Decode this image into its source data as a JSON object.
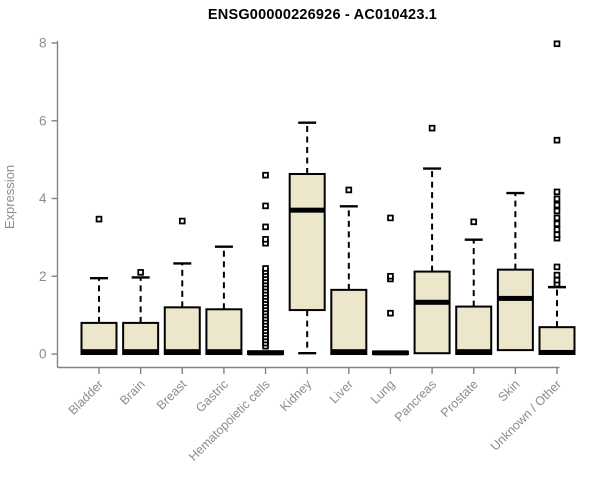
{
  "chart": {
    "title": "ENSG00000226926 - AC010423.1",
    "ylabel": "Expression"
  },
  "chart_data": {
    "type": "boxplot",
    "title": "ENSG00000226926 - AC010423.1",
    "xlabel": "",
    "ylabel": "Expression",
    "ylim": [
      0,
      8
    ],
    "yticks": [
      0,
      2,
      4,
      6,
      8
    ],
    "grid": false,
    "legend": "none",
    "box_fill_color": "#ECE7CB",
    "box_stroke_color": "#000000",
    "axis_color": "#848484",
    "label_color": "#8c8c8c",
    "categories": [
      "Bladder",
      "Brain",
      "Breast",
      "Gastric",
      "Hematopoietic cells",
      "Kidney",
      "Liver",
      "Lung",
      "Pancreas",
      "Prostate",
      "Skin",
      "Unknown / Other"
    ],
    "series": [
      {
        "name": "Bladder",
        "q1": 0,
        "median": 0.06,
        "q3": 0.8,
        "whisker_low": null,
        "whisker_high": 1.95,
        "outliers": [
          3.47
        ]
      },
      {
        "name": "Brain",
        "q1": 0,
        "median": 0.06,
        "q3": 0.8,
        "whisker_low": null,
        "whisker_high": 1.97,
        "outliers": [
          2.1
        ]
      },
      {
        "name": "Breast",
        "q1": 0,
        "median": 0.06,
        "q3": 1.2,
        "whisker_low": null,
        "whisker_high": 2.33,
        "outliers": [
          3.42
        ]
      },
      {
        "name": "Gastric",
        "q1": 0,
        "median": 0.06,
        "q3": 1.15,
        "whisker_low": null,
        "whisker_high": 2.76,
        "outliers": []
      },
      {
        "name": "Hematopoietic cells",
        "q1": 0,
        "median": 0.03,
        "q3": 0.07,
        "whisker_low": null,
        "whisker_high": null,
        "outliers": [
          0.2,
          0.28,
          0.36,
          0.44,
          0.52,
          0.6,
          0.68,
          0.76,
          0.84,
          0.92,
          1.0,
          1.08,
          1.16,
          1.24,
          1.32,
          1.4,
          1.48,
          1.56,
          1.64,
          1.72,
          1.8,
          1.88,
          1.96,
          2.04,
          2.12,
          2.2,
          2.85,
          2.95,
          3.27,
          3.81,
          4.6
        ]
      },
      {
        "name": "Kidney",
        "q1": 1.13,
        "median": 3.7,
        "q3": 4.63,
        "whisker_low": 0.02,
        "whisker_high": 5.95,
        "outliers": []
      },
      {
        "name": "Liver",
        "q1": 0,
        "median": 0.06,
        "q3": 1.65,
        "whisker_low": null,
        "whisker_high": 3.8,
        "outliers": [
          4.22
        ]
      },
      {
        "name": "Lung",
        "q1": 0,
        "median": 0.03,
        "q3": 0.06,
        "whisker_low": null,
        "whisker_high": null,
        "outliers": [
          1.05,
          1.93,
          2.0,
          3.5
        ]
      },
      {
        "name": "Pancreas",
        "q1": 0.02,
        "median": 1.33,
        "q3": 2.12,
        "whisker_low": null,
        "whisker_high": 4.77,
        "outliers": [
          5.81
        ]
      },
      {
        "name": "Prostate",
        "q1": 0,
        "median": 0.06,
        "q3": 1.22,
        "whisker_low": null,
        "whisker_high": 2.94,
        "outliers": [
          3.4
        ]
      },
      {
        "name": "Skin",
        "q1": 0.1,
        "median": 1.43,
        "q3": 2.17,
        "whisker_low": null,
        "whisker_high": 4.14,
        "outliers": []
      },
      {
        "name": "Unknown / Other",
        "q1": 0,
        "median": 0.04,
        "q3": 0.69,
        "whisker_low": null,
        "whisker_high": 1.72,
        "outliers": [
          1.8,
          1.9,
          2.03,
          2.24,
          2.98,
          3.07,
          3.2,
          3.35,
          3.5,
          3.68,
          3.83,
          3.99,
          4.17,
          5.5,
          7.98
        ]
      }
    ]
  }
}
